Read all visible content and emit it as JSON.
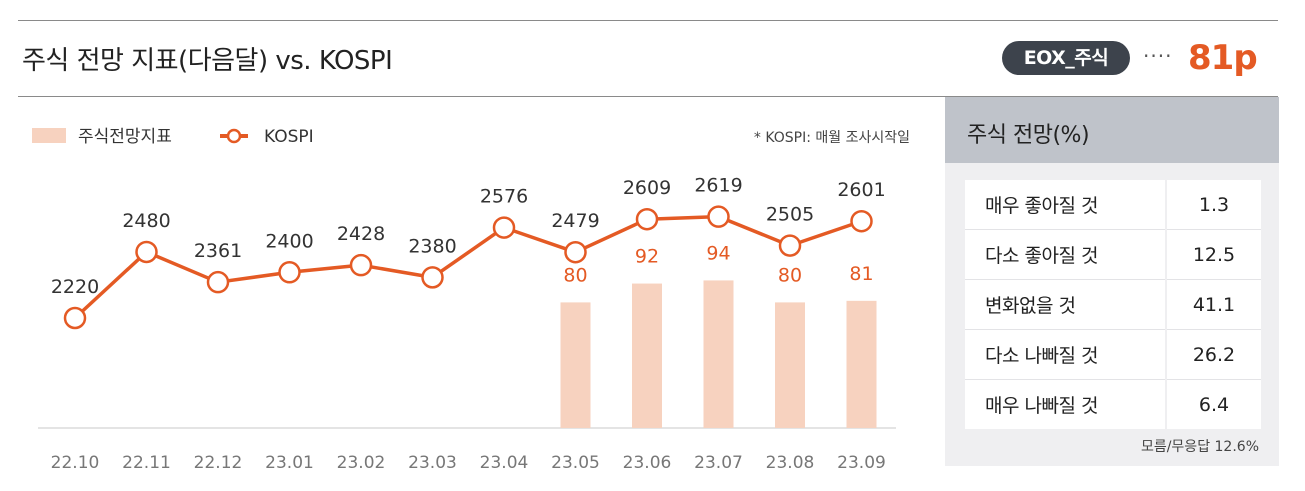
{
  "header": {
    "title": "주식 전망 지표(다음달) vs. KOSPI",
    "badge": "EOX_주식",
    "dots": "····",
    "score": "81p"
  },
  "colors": {
    "accent": "#e45a24",
    "bar": "#f7d2bf",
    "badge": "#3d434c",
    "panel_head": "#bfc3ca"
  },
  "chart_data": {
    "type": "bar+line",
    "categories": [
      "22.10",
      "22.11",
      "22.12",
      "23.01",
      "23.02",
      "23.03",
      "23.04",
      "23.05",
      "23.06",
      "23.07",
      "23.08",
      "23.09"
    ],
    "series": [
      {
        "name": "주식전망지표",
        "type": "bar",
        "values": [
          null,
          null,
          null,
          null,
          null,
          null,
          null,
          80,
          92,
          94,
          80,
          81
        ]
      },
      {
        "name": "KOSPI",
        "type": "line",
        "values": [
          2220,
          2480,
          2361,
          2400,
          2428,
          2380,
          2576,
          2479,
          2609,
          2619,
          2505,
          2601
        ]
      }
    ],
    "legend": [
      "주식전망지표",
      "KOSPI"
    ],
    "note": "* KOSPI: 매월 조사시작일"
  },
  "panel": {
    "title": "주식 전망(%)",
    "rows": [
      {
        "label": "매우 좋아질 것",
        "value": "1.3"
      },
      {
        "label": "다소 좋아질 것",
        "value": "12.5"
      },
      {
        "label": "변화없을 것",
        "value": "41.1"
      },
      {
        "label": "다소 나빠질 것",
        "value": "26.2"
      },
      {
        "label": "매우 나빠질 것",
        "value": "6.4"
      }
    ],
    "note": "모름/무응답 12.6%"
  }
}
